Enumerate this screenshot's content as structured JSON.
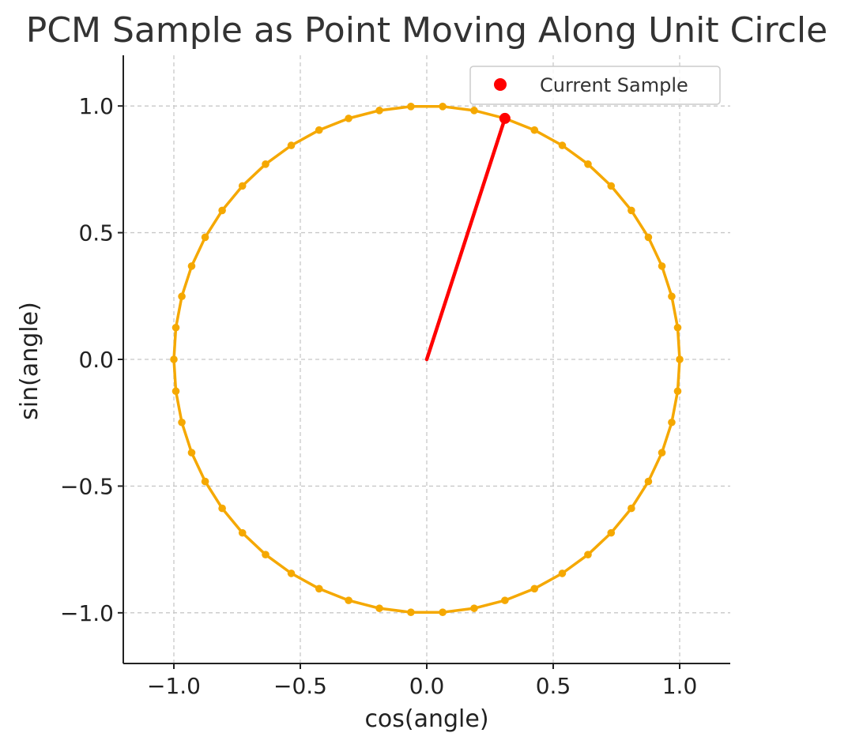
{
  "chart_data": {
    "type": "scatter",
    "title": "PCM Sample as Point Moving Along Unit Circle",
    "xlabel": "cos(angle)",
    "ylabel": "sin(angle)",
    "xlim": [
      -1.2,
      1.2
    ],
    "ylim": [
      -1.2,
      1.2
    ],
    "x_ticks": [
      -1.0,
      -0.5,
      0.0,
      0.5,
      1.0
    ],
    "y_ticks": [
      -1.0,
      -0.5,
      0.0,
      0.5,
      1.0
    ],
    "x_tick_labels": [
      "−1.0",
      "−0.5",
      "0.0",
      "0.5",
      "1.0"
    ],
    "y_tick_labels": [
      "−1.0",
      "−0.5",
      "0.0",
      "0.5",
      "1.0"
    ],
    "grid": true,
    "legend": {
      "position": "top-right",
      "entries": [
        "Current Sample"
      ]
    },
    "circle": {
      "color": "#f5a800",
      "num_samples": 50,
      "start_angle_deg": 0,
      "step_deg": 7.2,
      "closed": true
    },
    "current_sample": {
      "name": "Current Sample",
      "x": 0.309,
      "y": 0.951,
      "color": "#ff0000"
    },
    "radius_line": {
      "from": [
        0,
        0
      ],
      "to": [
        0.309,
        0.951
      ],
      "color": "#ff0000"
    }
  }
}
